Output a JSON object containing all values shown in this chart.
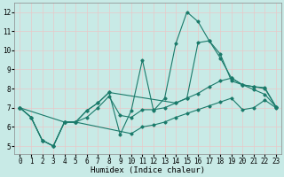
{
  "xlabel": "Humidex (Indice chaleur)",
  "xlim": [
    -0.5,
    23.5
  ],
  "ylim": [
    4.6,
    12.5
  ],
  "yticks": [
    5,
    6,
    7,
    8,
    9,
    10,
    11,
    12
  ],
  "xticks": [
    0,
    1,
    2,
    3,
    4,
    5,
    6,
    7,
    8,
    9,
    10,
    11,
    12,
    13,
    14,
    15,
    16,
    17,
    18,
    19,
    20,
    21,
    22,
    23
  ],
  "bg_color": "#c8eae6",
  "grid_color": "#e8c8c8",
  "line_color": "#1a7a6a",
  "series": [
    {
      "x": [
        0,
        1,
        2,
        3,
        4,
        5,
        10,
        11,
        12,
        13,
        14,
        15,
        16,
        17,
        18,
        19,
        20,
        21,
        22,
        23
      ],
      "y": [
        7.0,
        6.5,
        5.3,
        5.0,
        6.25,
        6.25,
        5.65,
        6.0,
        6.1,
        6.25,
        6.5,
        6.7,
        6.9,
        7.1,
        7.3,
        7.5,
        6.9,
        7.0,
        7.4,
        7.0
      ]
    },
    {
      "x": [
        0,
        1,
        2,
        3,
        4,
        5,
        6,
        7,
        8,
        9,
        10,
        11,
        12,
        13,
        14,
        15,
        16,
        17,
        18,
        19,
        20,
        21,
        22,
        23
      ],
      "y": [
        7.0,
        6.5,
        5.3,
        5.0,
        6.25,
        6.25,
        6.5,
        7.0,
        7.6,
        6.6,
        6.5,
        6.9,
        6.9,
        7.0,
        7.25,
        7.5,
        7.75,
        8.1,
        8.4,
        8.55,
        8.2,
        8.1,
        8.0,
        7.05
      ]
    },
    {
      "x": [
        0,
        1,
        2,
        3,
        4,
        5,
        6,
        7,
        8,
        9,
        10,
        11,
        12,
        13,
        14,
        15,
        16,
        17,
        18,
        19,
        20,
        21,
        22,
        23
      ],
      "y": [
        7.0,
        6.5,
        5.3,
        5.0,
        6.25,
        6.25,
        6.85,
        7.25,
        7.8,
        5.6,
        6.85,
        9.5,
        6.85,
        7.5,
        10.35,
        12.0,
        11.5,
        10.5,
        9.8,
        8.4,
        8.2,
        8.1,
        8.05,
        7.05
      ]
    },
    {
      "x": [
        0,
        4,
        5,
        6,
        7,
        8,
        14,
        15,
        16,
        17,
        18,
        19,
        20,
        21,
        22,
        23
      ],
      "y": [
        7.0,
        6.25,
        6.25,
        6.85,
        7.25,
        7.8,
        7.25,
        7.5,
        10.4,
        10.5,
        9.6,
        8.55,
        8.2,
        7.95,
        7.7,
        7.05
      ]
    }
  ],
  "label_fontsize": 6.5,
  "tick_fontsize": 5.5
}
